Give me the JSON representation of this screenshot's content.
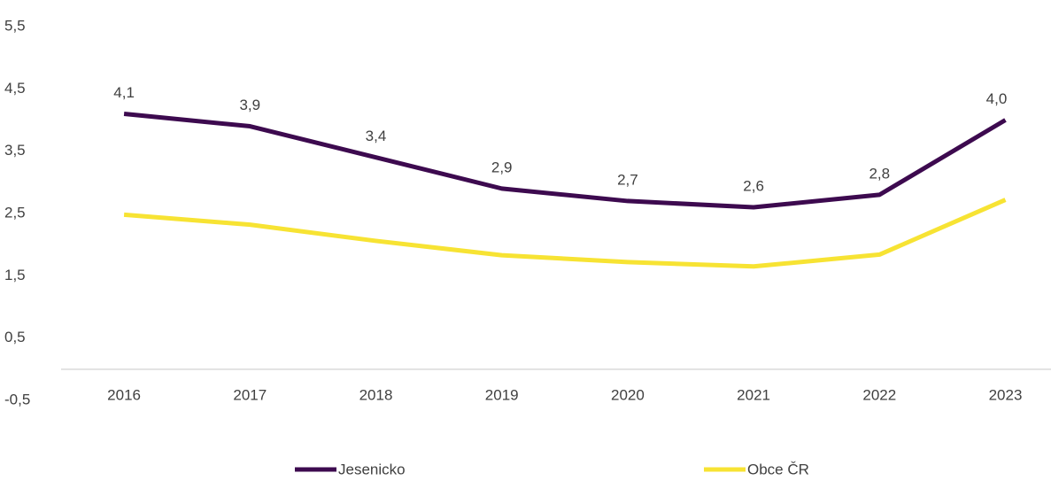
{
  "chart_data": {
    "type": "line",
    "categories": [
      "2016",
      "2017",
      "2018",
      "2019",
      "2020",
      "2021",
      "2022",
      "2023"
    ],
    "series": [
      {
        "name": "Jesenicko",
        "color": "#3d0a4f",
        "values": [
          4.1,
          3.9,
          3.4,
          2.9,
          2.7,
          2.6,
          2.8,
          4.0
        ],
        "value_labels": [
          "4,1",
          "3,9",
          "3,4",
          "2,9",
          "2,7",
          "2,6",
          "2,8",
          "4,0"
        ]
      },
      {
        "name": "Obce ČR",
        "color": "#f7e333",
        "values": [
          2.48,
          2.32,
          2.06,
          1.83,
          1.72,
          1.65,
          1.84,
          2.72
        ]
      }
    ],
    "ylim": [
      -0.5,
      5.5
    ],
    "yticks": [
      {
        "value": -0.5,
        "label": "-0,5"
      },
      {
        "value": 0.5,
        "label": "0,5"
      },
      {
        "value": 1.5,
        "label": "1,5"
      },
      {
        "value": 2.5,
        "label": "2,5"
      },
      {
        "value": 3.5,
        "label": "3,5"
      },
      {
        "value": 4.5,
        "label": "4,5"
      },
      {
        "value": 5.5,
        "label": "5,5"
      }
    ],
    "legend": "bottom"
  }
}
